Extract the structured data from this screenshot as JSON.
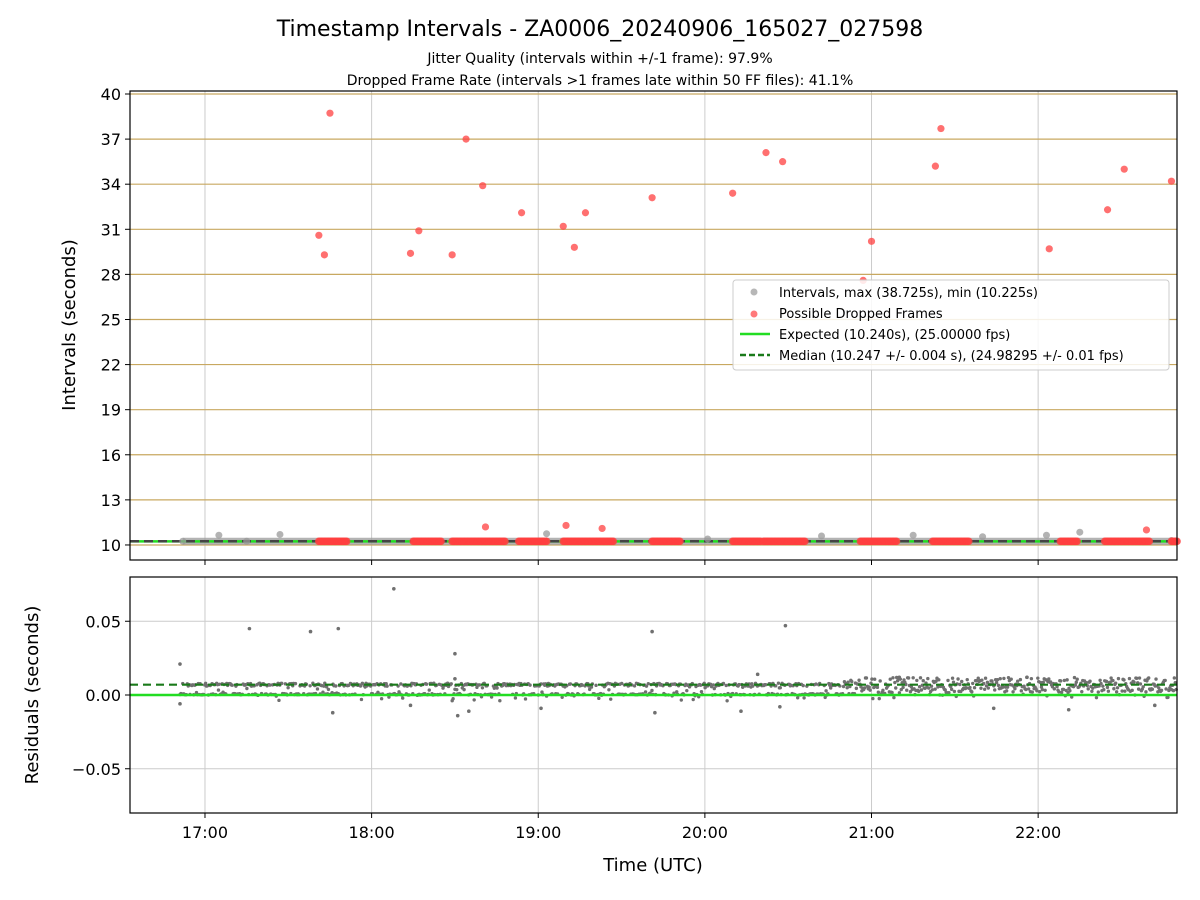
{
  "colors": {
    "interval": "#999999",
    "dropped": "#ff4040",
    "expected": "#22dd22",
    "median": "#1a7a1a",
    "frame_line": "#c8a860",
    "grid": "#cccccc",
    "residual": "#707070"
  },
  "chart_data": [
    {
      "type": "scatter",
      "title": "Timestamp Intervals - ZA0006_20240906_165027_027598",
      "subtitle_1": "Jitter Quality (intervals within +/-1 frame): 97.9%",
      "subtitle_2": "Dropped Frame Rate (intervals >1 frames late within 50 FF files): 41.1%",
      "xlabel": "",
      "ylabel": "Intervals (seconds)",
      "xlim": [
        "16:33",
        "22:50"
      ],
      "ylim": [
        9,
        40.2
      ],
      "yticks": [
        10,
        13,
        16,
        19,
        22,
        25,
        28,
        31,
        34,
        37,
        40
      ],
      "frame_lines": [
        10,
        13,
        16,
        19,
        22,
        25,
        28,
        31,
        34,
        37,
        40
      ],
      "legend_position": "center-right",
      "legend": {
        "intervals": "Intervals, max (38.725s), min (10.225s)",
        "dropped": "Possible Dropped Frames",
        "expected": "Expected (10.240s), (25.00000 fps)",
        "median": "Median (10.247 +/- 0.004 s), (24.98295 +/- 0.01 fps)"
      },
      "expected_value": 10.24,
      "median_value": 10.247,
      "series": [
        {
          "name": "Intervals, max (38.725s), min (10.225s)",
          "points": [
            [
              "17:05",
              10.65
            ],
            [
              "17:27",
              10.7
            ],
            [
              "19:03",
              10.75
            ],
            [
              "20:01",
              10.4
            ],
            [
              "20:42",
              10.6
            ],
            [
              "21:15",
              10.65
            ],
            [
              "21:40",
              10.55
            ],
            [
              "22:03",
              10.65
            ],
            [
              "22:15",
              10.85
            ],
            [
              "22:48",
              10.3
            ],
            [
              "16:52",
              10.25
            ],
            [
              "17:15",
              10.25
            ]
          ]
        },
        {
          "name": "Possible Dropped Frames",
          "points": [
            [
              "17:41",
              30.6
            ],
            [
              "17:43",
              29.3
            ],
            [
              "17:45",
              38.725
            ],
            [
              "18:14",
              29.4
            ],
            [
              "18:17",
              30.9
            ],
            [
              "18:29",
              29.3
            ],
            [
              "18:34",
              37.0
            ],
            [
              "18:40",
              33.9
            ],
            [
              "18:41",
              11.2
            ],
            [
              "18:54",
              32.1
            ],
            [
              "19:09",
              31.2
            ],
            [
              "19:10",
              11.3
            ],
            [
              "19:13",
              29.8
            ],
            [
              "19:17",
              32.1
            ],
            [
              "19:23",
              11.1
            ],
            [
              "19:41",
              33.1
            ],
            [
              "20:10",
              33.4
            ],
            [
              "20:22",
              36.1
            ],
            [
              "20:28",
              35.5
            ],
            [
              "20:57",
              27.6
            ],
            [
              "21:00",
              30.2
            ],
            [
              "21:23",
              35.2
            ],
            [
              "21:25",
              37.7
            ],
            [
              "22:04",
              29.7
            ],
            [
              "22:25",
              32.3
            ],
            [
              "22:31",
              35.0
            ],
            [
              "22:39",
              11.0
            ],
            [
              "22:48",
              34.2
            ]
          ],
          "baseline_clusters": [
            [
              "17:41",
              "17:51"
            ],
            [
              "18:15",
              "18:25"
            ],
            [
              "18:29",
              "18:48"
            ],
            [
              "18:53",
              "19:03"
            ],
            [
              "19:09",
              "19:27"
            ],
            [
              "19:41",
              "19:51"
            ],
            [
              "20:10",
              "20:20"
            ],
            [
              "20:21",
              "20:36"
            ],
            [
              "20:56",
              "21:09"
            ],
            [
              "21:22",
              "21:35"
            ],
            [
              "22:08",
              "22:14"
            ],
            [
              "22:24",
              "22:40"
            ],
            [
              "22:48",
              "22:50"
            ]
          ]
        }
      ]
    },
    {
      "type": "scatter",
      "xlabel": "Time (UTC)",
      "ylabel": "Residuals (seconds)",
      "xlim": [
        "16:33",
        "22:50"
      ],
      "ylim": [
        -0.08,
        0.08
      ],
      "yticks": [
        0.05,
        0.0,
        -0.05
      ],
      "ytick_labels": [
        "0.05",
        "0.00",
        "−0.05"
      ],
      "xticks": [
        "17:00",
        "18:00",
        "19:00",
        "20:00",
        "21:00",
        "22:00"
      ],
      "expected_residual": 0.0,
      "median_residual": 0.007,
      "series": [
        {
          "name": "",
          "outliers": [
            [
              "16:51",
              0.021
            ],
            [
              "17:16",
              0.045
            ],
            [
              "17:38",
              0.043
            ],
            [
              "17:48",
              0.045
            ],
            [
              "18:08",
              0.072
            ],
            [
              "18:30",
              0.028
            ],
            [
              "19:41",
              0.043
            ],
            [
              "20:29",
              0.047
            ],
            [
              "16:51",
              -0.006
            ],
            [
              "18:31",
              -0.014
            ],
            [
              "18:35",
              -0.011
            ],
            [
              "17:46",
              -0.012
            ],
            [
              "19:01",
              -0.009
            ],
            [
              "19:42",
              -0.012
            ],
            [
              "20:13",
              -0.011
            ],
            [
              "20:27",
              -0.008
            ],
            [
              "22:11",
              -0.01
            ],
            [
              "22:42",
              -0.007
            ],
            [
              "21:44",
              -0.009
            ],
            [
              "18:14",
              -0.007
            ],
            [
              "20:19",
              0.014
            ],
            [
              "18:30",
              0.011
            ],
            [
              "21:10",
              0.012
            ],
            [
              "21:56",
              0.012
            ]
          ],
          "clusters_note": "dense band of residuals near 0.000 to 0.010 s across the whole period"
        }
      ]
    }
  ]
}
